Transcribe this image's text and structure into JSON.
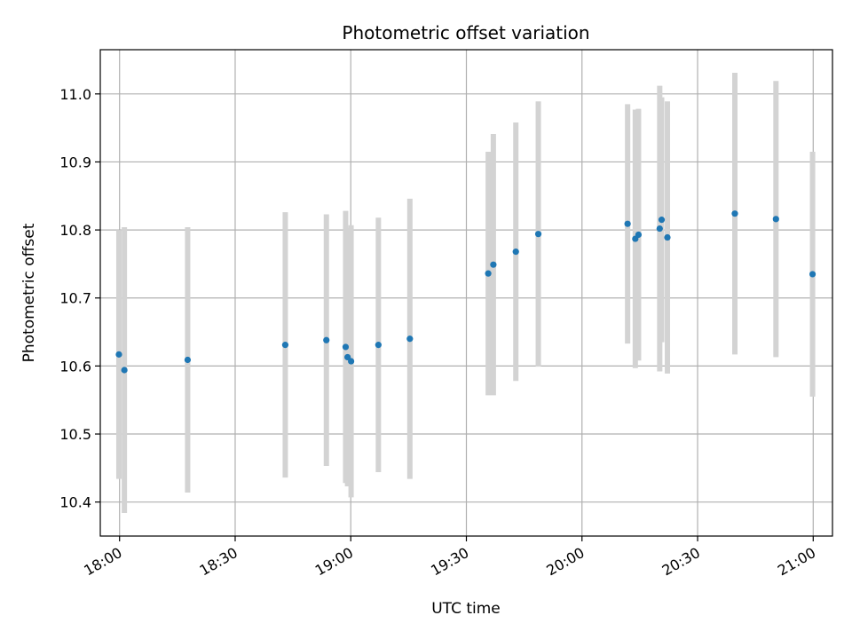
{
  "chart_data": {
    "type": "scatter",
    "title": "Photometric offset variation",
    "xlabel": "UTC time",
    "ylabel": "Photometric offset",
    "x_tick_labels": [
      "18:00",
      "18:30",
      "19:00",
      "19:30",
      "20:00",
      "20:30",
      "21:00"
    ],
    "x_ticks": [
      "18:00",
      "18:30",
      "19:00",
      "19:30",
      "20:00",
      "20:30",
      "21:00"
    ],
    "y_ticks": [
      10.4,
      10.5,
      10.6,
      10.7,
      10.8,
      10.9,
      11.0
    ],
    "y_tick_labels": [
      "10.4",
      "10.5",
      "10.6",
      "10.7",
      "10.8",
      "10.9",
      "11.0"
    ],
    "xlim": [
      "17:55",
      "21:05"
    ],
    "ylim": [
      10.35,
      11.065
    ],
    "grid": true,
    "marker_color": "#1f77b4",
    "errorbar_color": "#d3d3d3",
    "points": [
      {
        "t": "17:59:50",
        "y": 10.617,
        "err": 0.183
      },
      {
        "t": "18:01:15",
        "y": 10.594,
        "err": 0.21
      },
      {
        "t": "18:17:40",
        "y": 10.609,
        "err": 0.195
      },
      {
        "t": "18:43:00",
        "y": 10.631,
        "err": 0.195
      },
      {
        "t": "18:53:40",
        "y": 10.638,
        "err": 0.185
      },
      {
        "t": "18:58:40",
        "y": 10.628,
        "err": 0.2
      },
      {
        "t": "18:59:10",
        "y": 10.613,
        "err": 0.19
      },
      {
        "t": "19:00:05",
        "y": 10.607,
        "err": 0.2
      },
      {
        "t": "19:07:10",
        "y": 10.631,
        "err": 0.187
      },
      {
        "t": "19:15:20",
        "y": 10.64,
        "err": 0.206
      },
      {
        "t": "19:35:40",
        "y": 10.736,
        "err": 0.179
      },
      {
        "t": "19:37:00",
        "y": 10.749,
        "err": 0.192
      },
      {
        "t": "19:42:50",
        "y": 10.768,
        "err": 0.19
      },
      {
        "t": "19:48:40",
        "y": 10.794,
        "err": 0.195
      },
      {
        "t": "20:11:50",
        "y": 10.809,
        "err": 0.176
      },
      {
        "t": "20:13:50",
        "y": 10.787,
        "err": 0.19
      },
      {
        "t": "20:14:40",
        "y": 10.793,
        "err": 0.185
      },
      {
        "t": "20:20:10",
        "y": 10.802,
        "err": 0.21
      },
      {
        "t": "20:20:40",
        "y": 10.815,
        "err": 0.18
      },
      {
        "t": "20:22:10",
        "y": 10.789,
        "err": 0.2
      },
      {
        "t": "20:39:40",
        "y": 10.824,
        "err": 0.207
      },
      {
        "t": "20:50:20",
        "y": 10.816,
        "err": 0.203
      },
      {
        "t": "20:59:50",
        "y": 10.735,
        "err": 0.18
      }
    ]
  }
}
